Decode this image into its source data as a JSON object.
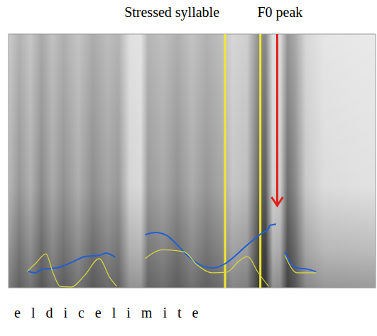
{
  "chart_data": {
    "type": "line",
    "xlabel": "e l d i c e l i m i t e",
    "xlim": [
      0,
      100
    ],
    "ylim": [
      0,
      100
    ],
    "tick_labels": false,
    "grid": false,
    "annotations": [
      {
        "text": "Stressed syllable",
        "x": [
          59,
          68.6
        ]
      },
      {
        "text": "F0 peak",
        "x": 73.2,
        "y": 32.4
      }
    ],
    "series": [
      {
        "color": "#1f5fd6",
        "marker": "none",
        "x": [
          5,
          7.3,
          9.2,
          13,
          16.9,
          20.8,
          24.7,
          26.6,
          29.1,
          33,
          37.2,
          40.1,
          43,
          45.9,
          48.7,
          51.6,
          55.5,
          59,
          61.3,
          65.1,
          69,
          70.9,
          71.2,
          72.9,
          74,
          75.3,
          76.7,
          78.6,
          81.5,
          83.8
        ],
        "values": [
          6.7,
          5.9,
          7.3,
          7.8,
          9.8,
          12.3,
          12.8,
          13.7,
          12,
          null,
          20.9,
          21.8,
          20.7,
          17,
          12.8,
          9.5,
          7.8,
          9.5,
          12,
          17,
          21.5,
          23.5,
          24.6,
          25.1,
          null,
          14.2,
          10,
          7.8,
          7.3,
          6.4
        ]
      },
      {
        "color": "#d8d840",
        "marker": "none",
        "x": [
          5,
          7.3,
          10.2,
          12.1,
          14.1,
          17,
          20.8,
          24.7,
          27.6,
          29.5,
          33,
          37.2,
          42,
          47.8,
          51.6,
          55.5,
          59.3,
          63.2,
          65.1,
          68,
          70.9,
          73,
          75.3,
          78.6,
          83.8
        ],
        "values": [
          6.4,
          9.5,
          13.4,
          6,
          0.5,
          0.3,
          5,
          11.5,
          4,
          0.5,
          null,
          11.5,
          15,
          14.2,
          8.7,
          5.9,
          6.1,
          11,
          12.3,
          6,
          0.5,
          null,
          12.8,
          5.9,
          5.9
        ]
      }
    ]
  }
}
